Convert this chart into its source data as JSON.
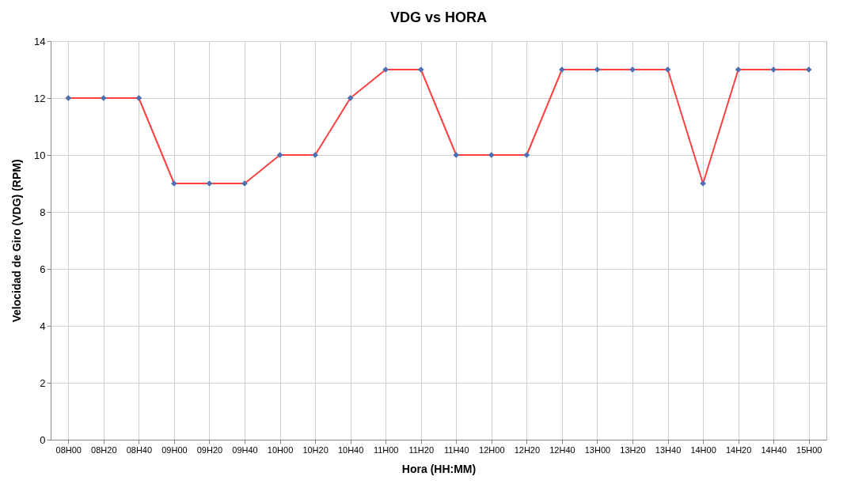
{
  "chart_data": {
    "type": "line",
    "title": "VDG  vs  HORA",
    "xlabel": "Hora (HH:MM)",
    "ylabel": "Velocidad de Giro (VDG) (RPM)",
    "categories": [
      "08H00",
      "08H20",
      "08H40",
      "09H00",
      "09H20",
      "09H40",
      "10H00",
      "10H20",
      "10H40",
      "11H00",
      "11H20",
      "11H40",
      "12H00",
      "12H20",
      "12H40",
      "13H00",
      "13H20",
      "13H40",
      "14H00",
      "14H20",
      "14H40",
      "15H00"
    ],
    "series": [
      {
        "color": "#ff4040",
        "values": [
          12,
          12,
          12,
          9,
          9,
          9,
          10,
          10,
          12,
          13,
          13,
          10,
          10,
          10,
          13,
          13,
          13,
          13,
          9,
          13,
          13,
          13
        ]
      }
    ],
    "ylim": [
      0,
      14
    ],
    "yticks": [
      0,
      2,
      4,
      6,
      8,
      10,
      12,
      14
    ],
    "grid": true,
    "marker": "diamond",
    "line_style": "solid"
  }
}
